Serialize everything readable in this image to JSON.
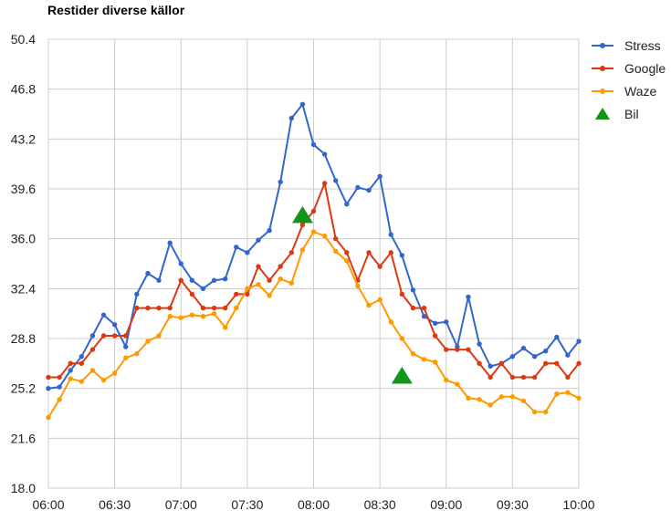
{
  "chart_data": {
    "type": "line",
    "title": "Restider diverse källor",
    "xlabel": "",
    "ylabel": "",
    "x_ticks": [
      "06:00",
      "06:30",
      "07:00",
      "07:30",
      "08:00",
      "08:30",
      "09:00",
      "09:30",
      "10:00"
    ],
    "y_ticks": [
      "18.0",
      "21.6",
      "25.2",
      "28.8",
      "32.4",
      "36.0",
      "39.6",
      "43.2",
      "46.8",
      "50.4"
    ],
    "xlim_minutes_after_06": [
      0,
      240
    ],
    "ylim": [
      18.0,
      50.4
    ],
    "grid": true,
    "legend_position": "right",
    "series": [
      {
        "name": "Stress",
        "color": "#3366cc",
        "marker": "circle",
        "times": [
          "06:00",
          "06:05",
          "06:10",
          "06:15",
          "06:20",
          "06:25",
          "06:30",
          "06:35",
          "06:40",
          "06:45",
          "06:50",
          "06:55",
          "07:00",
          "07:05",
          "07:10",
          "07:15",
          "07:20",
          "07:25",
          "07:30",
          "07:35",
          "07:40",
          "07:45",
          "07:50",
          "07:55",
          "08:00",
          "08:05",
          "08:10",
          "08:15",
          "08:20",
          "08:25",
          "08:30",
          "08:35",
          "08:40",
          "08:45",
          "08:50",
          "08:55",
          "09:00",
          "09:05",
          "09:10",
          "09:15",
          "09:20",
          "09:25",
          "09:30",
          "09:35",
          "09:40",
          "09:45",
          "09:50",
          "09:55",
          "10:00"
        ],
        "values": [
          25.2,
          25.3,
          26.5,
          27.5,
          29.0,
          30.5,
          29.8,
          28.2,
          32.0,
          33.5,
          33.0,
          35.7,
          34.2,
          33.0,
          32.4,
          33.0,
          33.1,
          35.4,
          35.0,
          35.9,
          36.6,
          40.1,
          44.7,
          45.7,
          42.8,
          42.1,
          40.2,
          38.5,
          39.7,
          39.5,
          40.5,
          36.3,
          34.8,
          32.3,
          30.4,
          29.9,
          30.0,
          28.2,
          31.8,
          28.4,
          26.8,
          27.0,
          27.5,
          28.1,
          27.5,
          27.9,
          28.9,
          27.6,
          28.6
        ]
      },
      {
        "name": "Google",
        "color": "#dc3912",
        "marker": "circle",
        "times": [
          "06:00",
          "06:05",
          "06:10",
          "06:15",
          "06:20",
          "06:25",
          "06:30",
          "06:35",
          "06:40",
          "06:45",
          "06:50",
          "06:55",
          "07:00",
          "07:05",
          "07:10",
          "07:15",
          "07:20",
          "07:25",
          "07:30",
          "07:35",
          "07:40",
          "07:45",
          "07:50",
          "07:55",
          "08:00",
          "08:05",
          "08:10",
          "08:15",
          "08:20",
          "08:25",
          "08:30",
          "08:35",
          "08:40",
          "08:45",
          "08:50",
          "08:55",
          "09:00",
          "09:05",
          "09:10",
          "09:15",
          "09:20",
          "09:25",
          "09:30",
          "09:35",
          "09:40",
          "09:45",
          "09:50",
          "09:55",
          "10:00"
        ],
        "values": [
          26.0,
          26.0,
          27.0,
          27.0,
          28.0,
          29.0,
          29.0,
          29.0,
          31.0,
          31.0,
          31.0,
          31.0,
          33.0,
          32.0,
          31.0,
          31.0,
          31.0,
          32.0,
          32.0,
          34.0,
          33.0,
          34.0,
          35.0,
          37.0,
          38.0,
          40.0,
          36.0,
          35.0,
          33.0,
          35.0,
          34.0,
          35.0,
          32.0,
          31.0,
          31.0,
          29.0,
          28.0,
          28.0,
          28.0,
          27.0,
          26.0,
          27.0,
          26.0,
          26.0,
          26.0,
          27.0,
          27.0,
          26.0,
          27.0
        ]
      },
      {
        "name": "Waze",
        "color": "#ff9900",
        "marker": "circle",
        "times": [
          "06:00",
          "06:05",
          "06:10",
          "06:15",
          "06:20",
          "06:25",
          "06:30",
          "06:35",
          "06:40",
          "06:45",
          "06:50",
          "06:55",
          "07:00",
          "07:05",
          "07:10",
          "07:15",
          "07:20",
          "07:25",
          "07:30",
          "07:35",
          "07:40",
          "07:45",
          "07:50",
          "07:55",
          "08:00",
          "08:05",
          "08:10",
          "08:15",
          "08:20",
          "08:25",
          "08:30",
          "08:35",
          "08:40",
          "08:45",
          "08:50",
          "08:55",
          "09:00",
          "09:05",
          "09:10",
          "09:15",
          "09:20",
          "09:25",
          "09:30",
          "09:35",
          "09:40",
          "09:45",
          "09:50",
          "09:55",
          "10:00"
        ],
        "values": [
          23.1,
          24.4,
          25.9,
          25.7,
          26.5,
          25.8,
          26.3,
          27.4,
          27.7,
          28.6,
          29.0,
          30.4,
          30.3,
          30.5,
          30.4,
          30.6,
          29.6,
          31.0,
          32.4,
          32.7,
          31.9,
          33.1,
          32.8,
          35.2,
          36.5,
          36.2,
          35.1,
          34.4,
          32.6,
          31.2,
          31.6,
          30.0,
          28.8,
          27.7,
          27.3,
          27.1,
          25.8,
          25.5,
          24.5,
          24.4,
          24.0,
          24.6,
          24.6,
          24.3,
          23.5,
          23.5,
          24.8,
          24.9,
          24.5
        ]
      },
      {
        "name": "Bil",
        "color": "#109618",
        "marker": "triangle",
        "times": [
          "07:55",
          "08:40"
        ],
        "values": [
          37.7,
          26.1
        ]
      }
    ]
  }
}
